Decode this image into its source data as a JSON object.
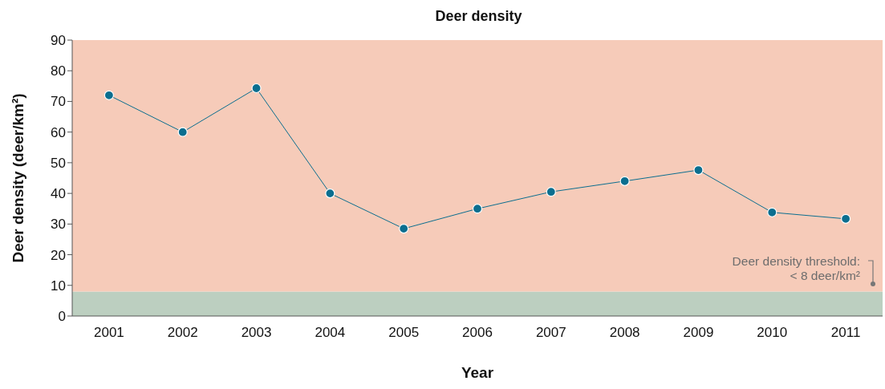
{
  "chart_data": {
    "type": "line",
    "title": "Deer density",
    "xlabel": "Year",
    "ylabel": "Deer density (deer/km²)",
    "categories": [
      "2001",
      "2002",
      "2003",
      "2004",
      "2005",
      "2006",
      "2007",
      "2008",
      "2009",
      "2010",
      "2011"
    ],
    "series": [
      {
        "color": "#0b6e8f",
        "values": [
          72,
          60,
          74.3,
          40,
          28.5,
          35,
          40.5,
          44,
          47.6,
          33.8,
          31.7
        ]
      }
    ],
    "ylim": [
      0,
      90
    ],
    "yticks": [
      0,
      10,
      20,
      30,
      40,
      50,
      60,
      70,
      80,
      90
    ],
    "marker": "circle",
    "line_style": "solid",
    "bands": [
      {
        "axis": "y",
        "from": 0,
        "to": 8,
        "color": "#bccfc0"
      },
      {
        "axis": "y",
        "from": 8,
        "to": 90,
        "color": "#f6cbb9"
      }
    ],
    "annotations": [
      {
        "text": "Deer density threshold: < 8 deer/km²",
        "y": 8
      }
    ]
  }
}
